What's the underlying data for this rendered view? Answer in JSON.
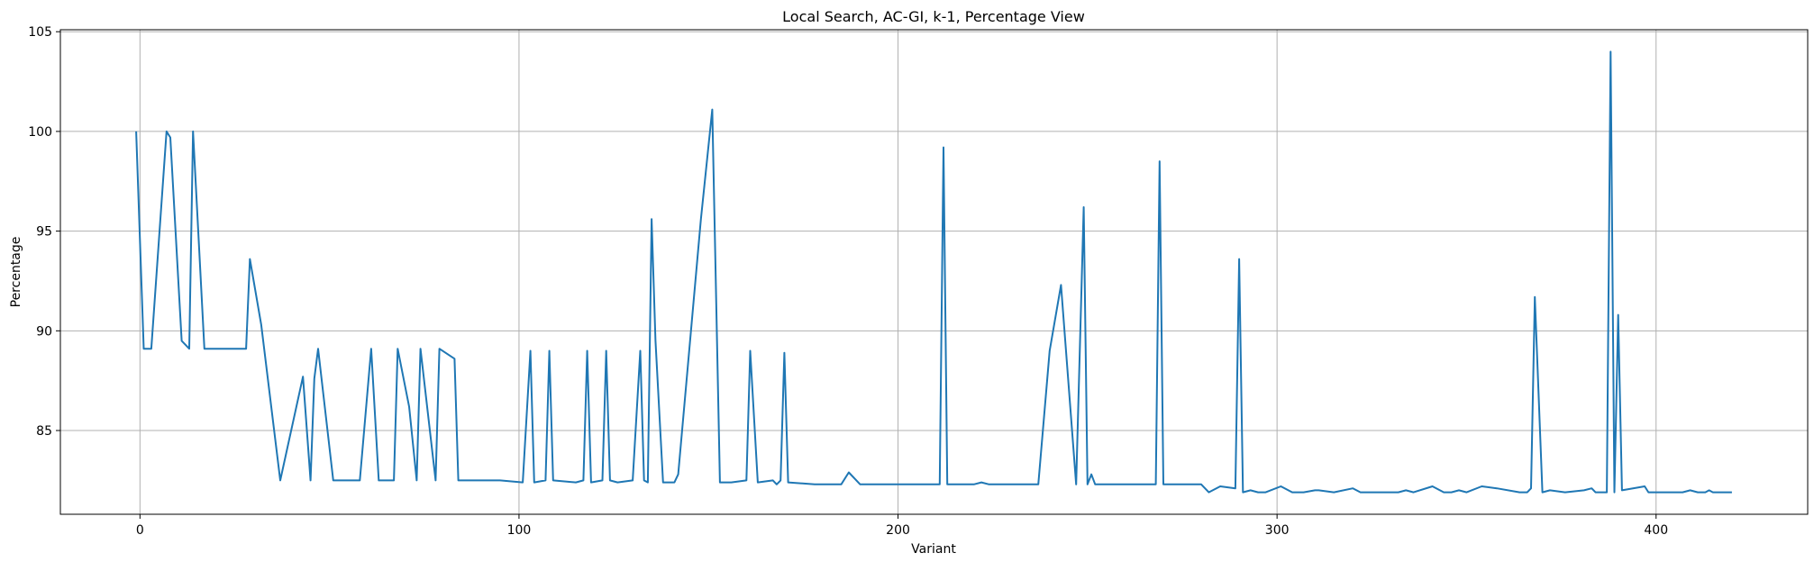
{
  "chart_data": {
    "type": "line",
    "title": "Local Search, AC-GI, k-1, Percentage View",
    "xlabel": "Variant",
    "ylabel": "Percentage",
    "xlim": [
      -21,
      440
    ],
    "ylim": [
      80.8,
      105.1
    ],
    "xticks": [
      0,
      100,
      200,
      300,
      400
    ],
    "yticks": [
      85,
      90,
      95,
      100,
      105
    ],
    "grid": true,
    "legend": "none",
    "series": [
      {
        "color": "#1f77b4",
        "x": [
          -1,
          1,
          3,
          7,
          8,
          11,
          13,
          14,
          17,
          20,
          24,
          28,
          29,
          32,
          37,
          43,
          45,
          46,
          47,
          51,
          58,
          61,
          63,
          67,
          68,
          71,
          73,
          74,
          78,
          79,
          83,
          84,
          88,
          95,
          101,
          103,
          104,
          107,
          108,
          109,
          115,
          117,
          118,
          119,
          122,
          123,
          124,
          126,
          130,
          132,
          133,
          134,
          135,
          136,
          138,
          141,
          142,
          148,
          151,
          153,
          156,
          160,
          161,
          163,
          167,
          168,
          169,
          170,
          171,
          178,
          185,
          187,
          190,
          195,
          201,
          211,
          212,
          213,
          215,
          220,
          222,
          224,
          230,
          235,
          237,
          240,
          243,
          247,
          249,
          250,
          251,
          252,
          253,
          255,
          263,
          268,
          269,
          270,
          272,
          278,
          280,
          282,
          285,
          289,
          290,
          291,
          293,
          295,
          297,
          301,
          304,
          307,
          310,
          311,
          315,
          320,
          322,
          327,
          332,
          334,
          336,
          341,
          344,
          346,
          348,
          350,
          354,
          358,
          364,
          366,
          367,
          368,
          370,
          372,
          376,
          381,
          383,
          384,
          386,
          387,
          388,
          389,
          390,
          391,
          397,
          398,
          403,
          407,
          409,
          411,
          413,
          414,
          415,
          420
        ],
        "y": [
          100,
          89.1,
          89.1,
          100,
          99.7,
          89.5,
          89.1,
          100,
          89.1,
          89.1,
          89.1,
          89.1,
          93.6,
          90.3,
          82.5,
          87.7,
          82.5,
          87.6,
          89.1,
          82.5,
          82.5,
          89.1,
          82.5,
          82.5,
          89.1,
          86.2,
          82.5,
          89.1,
          82.5,
          89.1,
          88.6,
          82.5,
          82.5,
          82.5,
          82.4,
          89.0,
          82.4,
          82.5,
          89.0,
          82.5,
          82.4,
          82.5,
          89.0,
          82.4,
          82.5,
          89.0,
          82.5,
          82.4,
          82.5,
          89.0,
          82.5,
          82.4,
          95.6,
          89.5,
          82.4,
          82.4,
          82.8,
          95.6,
          101.1,
          82.4,
          82.4,
          82.5,
          89.0,
          82.4,
          82.5,
          82.3,
          82.5,
          88.9,
          82.4,
          82.3,
          82.3,
          82.9,
          82.3,
          82.3,
          82.3,
          82.3,
          99.2,
          82.3,
          82.3,
          82.3,
          82.4,
          82.3,
          82.3,
          82.3,
          82.3,
          89.0,
          92.3,
          82.3,
          96.2,
          82.3,
          82.8,
          82.3,
          82.3,
          82.3,
          82.3,
          82.3,
          98.5,
          82.3,
          82.3,
          82.3,
          82.3,
          81.9,
          82.2,
          82.1,
          93.6,
          81.9,
          82.0,
          81.9,
          81.9,
          82.2,
          81.9,
          81.9,
          82.0,
          82.0,
          81.9,
          82.1,
          81.9,
          81.9,
          81.9,
          82.0,
          81.9,
          82.2,
          81.9,
          81.9,
          82.0,
          81.9,
          82.2,
          82.1,
          81.9,
          81.9,
          82.1,
          91.7,
          81.9,
          82.0,
          81.9,
          82.0,
          82.1,
          81.9,
          81.9,
          81.9,
          104.0,
          81.9,
          90.8,
          82.0,
          82.2,
          81.9,
          81.9,
          81.9,
          82.0,
          81.9,
          81.9,
          82.0,
          81.9,
          81.9
        ]
      }
    ]
  }
}
